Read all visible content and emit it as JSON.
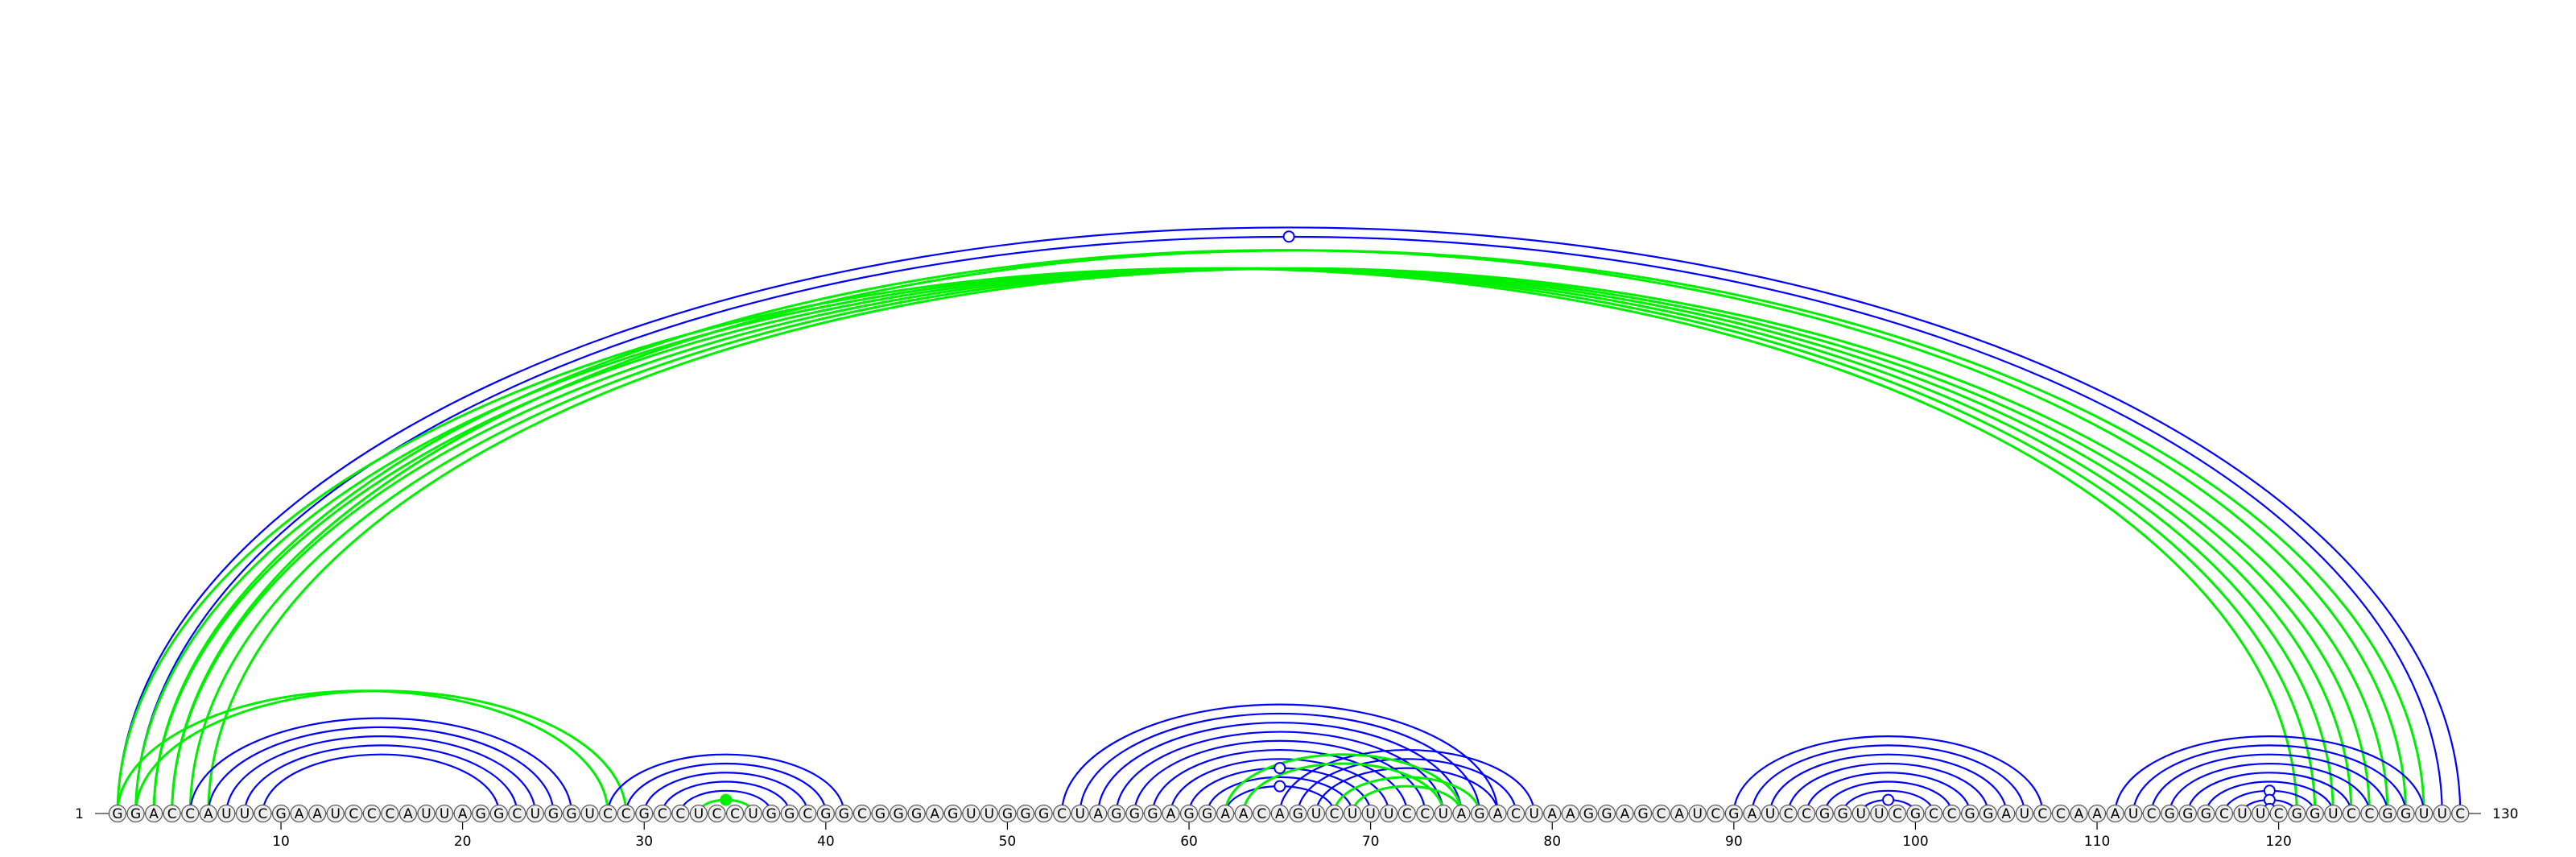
{
  "diagram": {
    "type": "rna-arc-diagram",
    "sequence": "GGACCAUUCGAAUCCCAUUAGGCUGGUCCGCCUCCUGGCGGCGGGAGUUGGGCUAGGGAGGAACAGUCUUUCCUAGACUAAGGAGCAUCGAUCCGGUUCGCCGGAUCCAAAUCGGGCUUCGGUCCGGUUC",
    "start_label": "1",
    "end_label": "130",
    "tick_labels": [
      "10",
      "20",
      "30",
      "40",
      "50",
      "60",
      "70",
      "80",
      "90",
      "100",
      "110",
      "120"
    ],
    "colors": {
      "blue": "#0000ff",
      "green": "#00ee00",
      "nt_fill": "#ededed",
      "nt_stroke": "#555555"
    },
    "helices": [
      {
        "color": "blue",
        "pairs": [
          [
            1,
            130
          ],
          [
            2,
            129
          ]
        ],
        "marker": "open"
      },
      {
        "color": "green",
        "pairs": [
          [
            1,
            121
          ],
          [
            2,
            122
          ],
          [
            3,
            123
          ],
          [
            4,
            124
          ],
          [
            5,
            125
          ],
          [
            6,
            126
          ]
        ]
      },
      {
        "color": "green",
        "pairs": [
          [
            3,
            127
          ],
          [
            4,
            128
          ]
        ]
      },
      {
        "color": "green",
        "pairs": [
          [
            1,
            28
          ],
          [
            2,
            29
          ]
        ]
      },
      {
        "color": "blue",
        "pairs": [
          [
            5,
            26
          ],
          [
            6,
            25
          ],
          [
            7,
            24
          ],
          [
            8,
            23
          ],
          [
            9,
            22
          ]
        ]
      },
      {
        "color": "blue",
        "pairs": [
          [
            28,
            41
          ],
          [
            29,
            40
          ],
          [
            30,
            39
          ],
          [
            31,
            38
          ],
          [
            32,
            37
          ],
          [
            33,
            36
          ]
        ]
      },
      {
        "color": "green",
        "pairs": [
          [
            33,
            36
          ]
        ],
        "marker": "filled"
      },
      {
        "color": "blue",
        "pairs": [
          [
            53,
            77
          ],
          [
            54,
            76
          ],
          [
            55,
            75
          ],
          [
            56,
            74
          ],
          [
            57,
            73
          ],
          [
            58,
            72
          ]
        ]
      },
      {
        "color": "blue",
        "pairs": [
          [
            59,
            71
          ],
          [
            60,
            70
          ]
        ],
        "marker": "open"
      },
      {
        "color": "blue",
        "pairs": [
          [
            61,
            69
          ],
          [
            62,
            68
          ]
        ],
        "marker": "open"
      },
      {
        "color": "blue",
        "pairs": [
          [
            65,
            79
          ],
          [
            66,
            78
          ],
          [
            67,
            77
          ],
          [
            68,
            76
          ],
          [
            69,
            75
          ]
        ]
      },
      {
        "color": "green",
        "pairs": [
          [
            62,
            75
          ],
          [
            63,
            74
          ]
        ]
      },
      {
        "color": "green",
        "pairs": [
          [
            68,
            76
          ],
          [
            69,
            75
          ]
        ]
      },
      {
        "color": "blue",
        "pairs": [
          [
            90,
            107
          ],
          [
            91,
            106
          ],
          [
            92,
            105
          ],
          [
            93,
            104
          ],
          [
            94,
            103
          ],
          [
            95,
            102
          ],
          [
            96,
            101
          ],
          [
            97,
            100
          ]
        ],
        "marker": "open"
      },
      {
        "color": "blue",
        "pairs": [
          [
            111,
            128
          ],
          [
            112,
            127
          ],
          [
            113,
            126
          ],
          [
            114,
            125
          ],
          [
            115,
            124
          ],
          [
            116,
            123
          ]
        ]
      },
      {
        "color": "blue",
        "pairs": [
          [
            117,
            122
          ]
        ],
        "marker": "open"
      },
      {
        "color": "blue",
        "pairs": [
          [
            118,
            121
          ]
        ],
        "marker": "open"
      },
      {
        "color": "blue",
        "pairs": [
          [
            119,
            120
          ]
        ],
        "marker": "open"
      }
    ]
  }
}
